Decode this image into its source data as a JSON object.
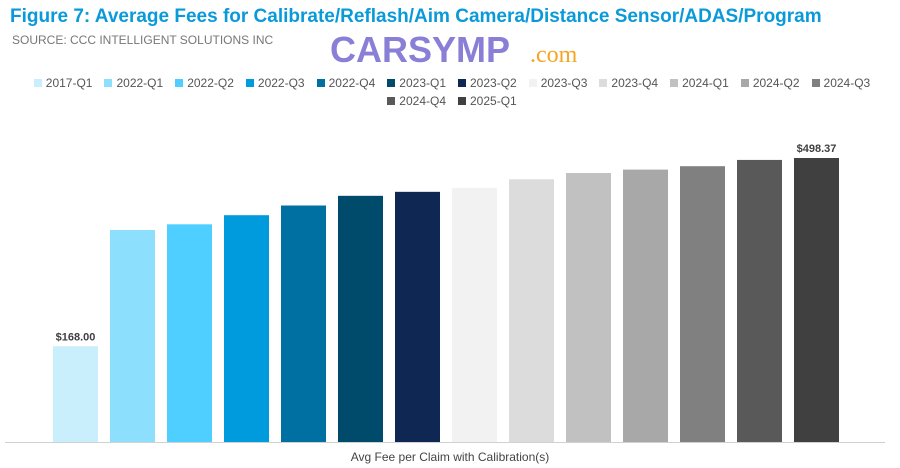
{
  "title": "Figure 7: Average Fees for Calibrate/Reflash/Aim Camera/Distance Sensor/ADAS/Program",
  "source": "SOURCE: CCC INTELLIGENT SOLUTIONS INC",
  "watermark": {
    "text": "CARSYMP",
    "suffix": ".com",
    "color": "#8a7fd6",
    "suffix_color": "#f5a623"
  },
  "chart_data": {
    "type": "bar",
    "title": "Figure 7: Average Fees for Calibrate/Reflash/Aim Camera/Distance Sensor/ADAS/Program",
    "xlabel": "Avg Fee per Claim with Calibration(s)",
    "ylabel": "",
    "ylim": [
      0,
      520
    ],
    "grid": false,
    "legend": "top",
    "categories": [
      "2017-Q1",
      "2022-Q1",
      "2022-Q2",
      "2022-Q3",
      "2022-Q4",
      "2023-Q1",
      "2023-Q2",
      "2023-Q3",
      "2023-Q4",
      "2024-Q1",
      "2024-Q2",
      "2024-Q3",
      "2024-Q4",
      "2025-Q1"
    ],
    "values": [
      168.0,
      372,
      382,
      398,
      415,
      432,
      439,
      446,
      461,
      472,
      478,
      484,
      495,
      498.37
    ],
    "colors": [
      "#c9eefc",
      "#8ce0fd",
      "#4fcfff",
      "#009bdc",
      "#0070a3",
      "#004a6b",
      "#0e2853",
      "#f2f2f2",
      "#dcdcdc",
      "#c1c1c1",
      "#a8a8a8",
      "#808080",
      "#595959",
      "#404040"
    ],
    "data_labels": [
      {
        "index": 0,
        "text": "$168.00"
      },
      {
        "index": 13,
        "text": "$498.37"
      }
    ]
  }
}
